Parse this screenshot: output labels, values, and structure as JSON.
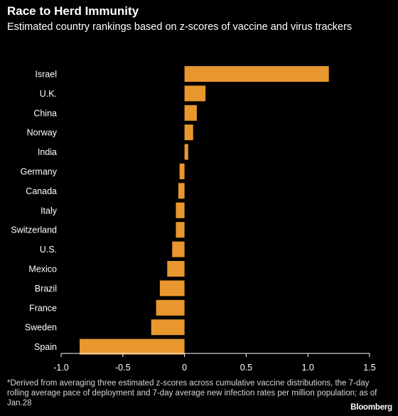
{
  "chart_data": {
    "type": "bar",
    "orientation": "horizontal",
    "title": "Race to Herd Immunity",
    "subtitle": "Estimated country rankings based on z-scores of vaccine and virus trackers",
    "categories": [
      "Israel",
      "U.K.",
      "China",
      "Norway",
      "India",
      "Germany",
      "Canada",
      "Italy",
      "Switzerland",
      "U.S.",
      "Mexico",
      "Brazil",
      "France",
      "Sweden",
      "Spain"
    ],
    "values": [
      1.17,
      0.17,
      0.1,
      0.07,
      0.03,
      -0.04,
      -0.05,
      -0.07,
      -0.07,
      -0.1,
      -0.14,
      -0.2,
      -0.23,
      -0.27,
      -0.85
    ],
    "xlim": [
      -1.0,
      1.5
    ],
    "xticks": [
      -1.0,
      -0.5,
      0,
      0.5,
      1.0,
      1.5
    ],
    "xtick_labels": [
      "-1.0",
      "-0.5",
      "0",
      "0.5",
      "1.0",
      "1.5"
    ],
    "grid": false,
    "bar_color": "#e8972f"
  },
  "footnote": "*Derived from averaging three estimated z-scores across cumulative vaccine distributions, the 7-day rolling average pace of deployment and 7-day average new infection rates per million population; as of Jan.28",
  "source_logo": "Bloomberg"
}
